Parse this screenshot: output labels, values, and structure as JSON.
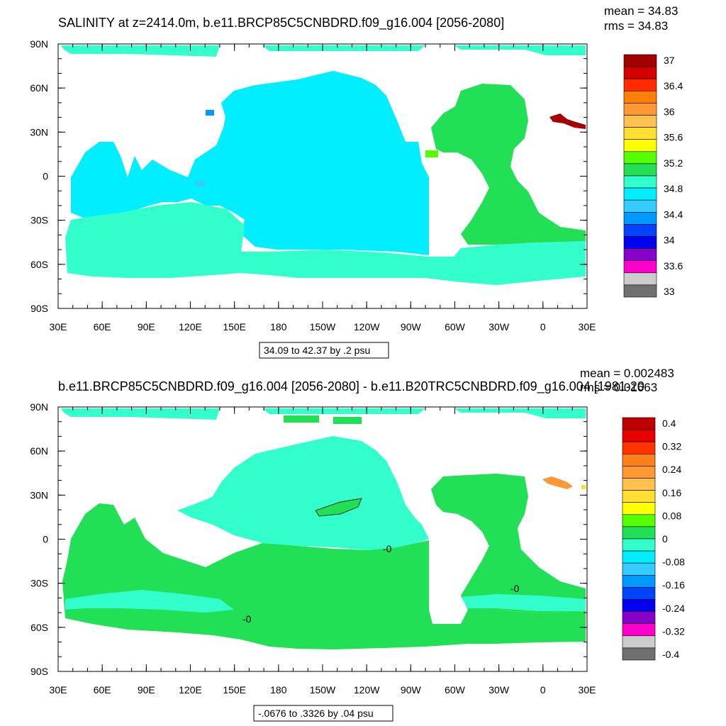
{
  "chart_data": [
    {
      "type": "heatmap",
      "title": "SALINITY at z=2414.0m, b.e11.BRCP85C5CNBDRD.f09_g16.004 [2056-2080]",
      "stats": [
        "mean = 34.83",
        "rms = 34.83"
      ],
      "x_ticks": [
        "30E",
        "60E",
        "90E",
        "120E",
        "150E",
        "180",
        "150W",
        "120W",
        "90W",
        "60W",
        "30W",
        "0",
        "30E"
      ],
      "y_ticks": [
        "90N",
        "60N",
        "30N",
        "0",
        "30S",
        "60S",
        "90S"
      ],
      "colorbar": {
        "labels": [
          "37",
          "36.4",
          "36",
          "35.6",
          "35.2",
          "34.8",
          "34.4",
          "34",
          "33.6",
          "33"
        ],
        "colors": [
          "#a50000",
          "#d40000",
          "#ff2a00",
          "#ff7f00",
          "#ff9933",
          "#ffc34d",
          "#ffdf33",
          "#ffff00",
          "#55ff00",
          "#22e055",
          "#33ffcc",
          "#00eeff",
          "#33ccff",
          "#0099ff",
          "#0044ff",
          "#0000ee",
          "#8800cc",
          "#ff00cc",
          "#cccccc",
          "#707070"
        ]
      },
      "info": "34.09 to 42.37 by .2 psu",
      "regions": {
        "ocean_main": "34.8",
        "southern_band": "34.8",
        "atlantic": "35.2",
        "mediterranean": "37"
      }
    },
    {
      "type": "heatmap",
      "title": "b.e11.BRCP85C5CNBDRD.f09_g16.004 [2056-2080] - b.e11.B20TRC5CNBDRD.f09_g16.004 [1981-20",
      "stats": [
        "mean = 0.002483",
        "rms = 0.01663"
      ],
      "x_ticks": [
        "30E",
        "60E",
        "90E",
        "120E",
        "150E",
        "180",
        "150W",
        "120W",
        "90W",
        "60W",
        "30W",
        "0",
        "30E"
      ],
      "y_ticks": [
        "90N",
        "60N",
        "30N",
        "0",
        "30S",
        "60S",
        "90S"
      ],
      "colorbar": {
        "labels": [
          "0.4",
          "0.32",
          "0.24",
          "0.16",
          "0.08",
          "0",
          "-0.08",
          "-0.16",
          "-0.24",
          "-0.32",
          "-0.4"
        ],
        "colors": [
          "#c00000",
          "#e80000",
          "#ff3300",
          "#ff7f1a",
          "#ff9933",
          "#ffc34d",
          "#ffdf33",
          "#ffff00",
          "#55ff00",
          "#22e055",
          "#33ffcc",
          "#00eeff",
          "#33ccff",
          "#0099ff",
          "#0044ff",
          "#0000ee",
          "#8800cc",
          "#ff00cc",
          "#cccccc",
          "#707070"
        ]
      },
      "info": "-.0676 to .3326 by .04 psu",
      "contour_labels": [
        "-0",
        "-0",
        "-0"
      ],
      "regions": {
        "north_pacific": "0 to -0.08",
        "south_pacific": "0 to 0.08",
        "atlantic": "0 to 0.08",
        "southern_ocean": "0 to 0.08"
      }
    }
  ]
}
